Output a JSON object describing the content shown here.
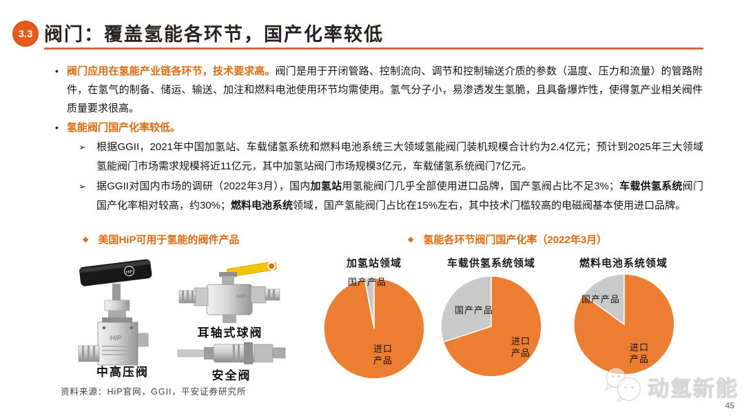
{
  "slide": {
    "section_number": "3.3",
    "title": "阀门：覆盖氢能各环节，国产化率较低",
    "page_number": "45",
    "source_note": "资料来源：HiP官网，GGII，平安证券研究所",
    "watermark_text": "动氢新能"
  },
  "colors": {
    "accent-orange": "#E8591C",
    "underline-orange": "#D4693C",
    "lead-orange": "#E4690B"
  },
  "bullet1": {
    "marker": "•",
    "lead": "阀门应用在氢能产业链各环节，技术要求高。",
    "body": "阀门是用于开闭管路、控制流向、调节和控制输送介质的参数（温度、压力和流量）的管路附件，在氢气的制备、储运、输送、加注和燃料电池使用环节均需使用。氢气分子小，易渗透发生氢脆，且具备爆炸性，使得氢产业相关阀件质量要求很高。"
  },
  "bullet2": {
    "marker": "•",
    "lead": "氢能阀门国产化率较低。"
  },
  "sub1": {
    "marker": "➢",
    "text": "根据GGII，2021年中国加氢站、车载储氢系统和燃料电池系统三大领域氢能阀门装机规模合计约为2.4亿元；预计到2025年三大领域氢能阀门市场需求规模将近11亿元，其中加氢站阀门市场规模3亿元，车载储氢系统阀门7亿元。"
  },
  "sub2": {
    "marker": "➢",
    "segments": [
      {
        "text": "据GGII对国内市场的调研（2022年3月），国内",
        "bold": false
      },
      {
        "text": "加氢站",
        "bold": true
      },
      {
        "text": "用氢能阀门几乎全部使用进口品牌，国产氢阀占比不足3%；",
        "bold": false
      },
      {
        "text": "车载供氢系统",
        "bold": true
      },
      {
        "text": "阀门国产化率相对较高，约30%；",
        "bold": false
      },
      {
        "text": "燃料电池系统",
        "bold": true
      },
      {
        "text": "领域，国产氢能阀门占比在15%左右，其中技术门槛较高的电磁阀基本使用进口品牌。",
        "bold": false
      }
    ]
  },
  "figure_left": {
    "marker": "◆",
    "title": "美国HiP可用于氢能的阀件产品",
    "brand": "HiP",
    "valve_labels": [
      "中高压阀",
      "耳轴式球阀",
      "安全阀"
    ]
  },
  "figure_right": {
    "marker": "◆",
    "title": "氢能各环节阀门国产化率（2022年3月）"
  },
  "chart_data": [
    {
      "type": "pie",
      "title": "加氢站领域",
      "slices": [
        {
          "label": "进口产品",
          "value": 97,
          "color": "#ED7D31"
        },
        {
          "label": "国产产品",
          "value": 3,
          "color": "#C9C9C9"
        }
      ],
      "start_angle_deg": -90,
      "direction": "clockwise",
      "border": "#FFFFFF",
      "legend": "none"
    },
    {
      "type": "pie",
      "title": "车载供氢系统领域",
      "slices": [
        {
          "label": "进口产品",
          "value": 70,
          "color": "#ED7D31"
        },
        {
          "label": "国产产品",
          "value": 30,
          "color": "#C9C9C9"
        }
      ],
      "start_angle_deg": -90,
      "direction": "clockwise",
      "border": "#FFFFFF",
      "legend": "none"
    },
    {
      "type": "pie",
      "title": "燃料电池系统领域",
      "slices": [
        {
          "label": "进口产品",
          "value": 85,
          "color": "#ED7D31"
        },
        {
          "label": "国产产品",
          "value": 15,
          "color": "#C9C9C9"
        }
      ],
      "start_angle_deg": -90,
      "direction": "clockwise",
      "border": "#FFFFFF",
      "legend": "none"
    }
  ]
}
